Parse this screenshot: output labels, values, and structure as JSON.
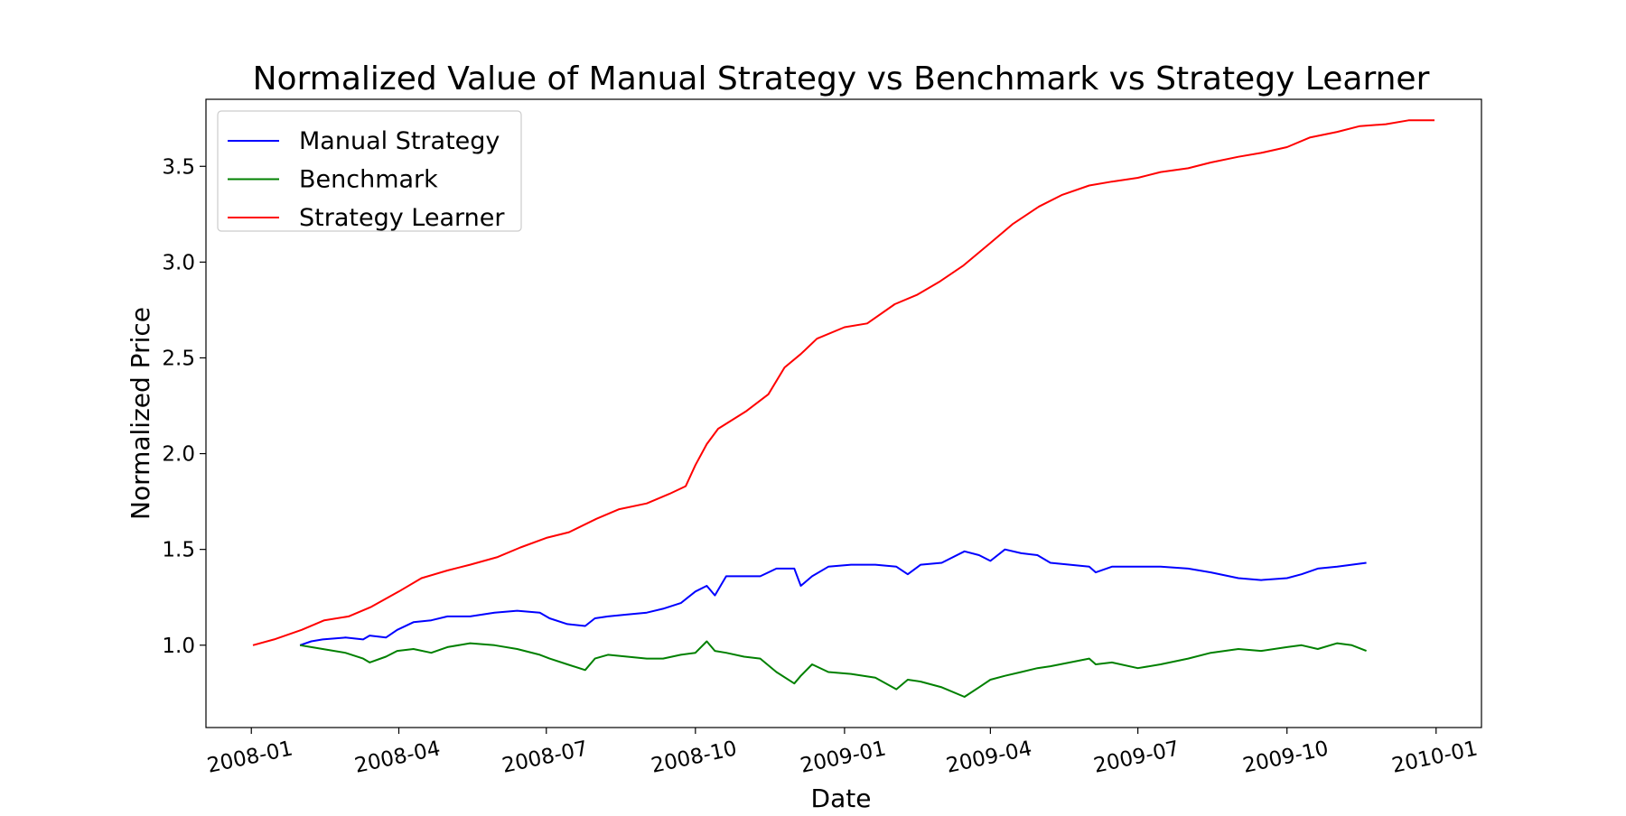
{
  "chart_data": {
    "type": "line",
    "title": "Normalized Value of Manual Strategy vs Benchmark vs Strategy Learner",
    "xlabel": "Date",
    "ylabel": "Normalized Price",
    "x_axis_type": "date",
    "xlim": [
      "2007-12-04",
      "2010-01-29"
    ],
    "ylim": [
      0.57,
      3.85
    ],
    "x_ticks": [
      "2008-01",
      "2008-04",
      "2008-07",
      "2008-10",
      "2009-01",
      "2009-04",
      "2009-07",
      "2009-10",
      "2010-01"
    ],
    "y_ticks": [
      "1.0",
      "1.5",
      "2.0",
      "2.5",
      "3.0",
      "3.5"
    ],
    "y_tick_values": [
      1.0,
      1.5,
      2.0,
      2.5,
      3.0,
      3.5
    ],
    "x_tick_rotation_deg": -12,
    "grid": false,
    "legend_position": "top-left",
    "series": [
      {
        "name": "Manual Strategy",
        "color": "#0000ff",
        "points": [
          [
            "2008-01-31",
            1.0
          ],
          [
            "2008-02-07",
            1.02
          ],
          [
            "2008-02-14",
            1.03
          ],
          [
            "2008-02-28",
            1.04
          ],
          [
            "2008-03-10",
            1.03
          ],
          [
            "2008-03-14",
            1.05
          ],
          [
            "2008-03-24",
            1.04
          ],
          [
            "2008-03-31",
            1.08
          ],
          [
            "2008-04-10",
            1.12
          ],
          [
            "2008-04-21",
            1.13
          ],
          [
            "2008-05-01",
            1.15
          ],
          [
            "2008-05-15",
            1.15
          ],
          [
            "2008-05-30",
            1.17
          ],
          [
            "2008-06-13",
            1.18
          ],
          [
            "2008-06-27",
            1.17
          ],
          [
            "2008-07-03",
            1.14
          ],
          [
            "2008-07-14",
            1.11
          ],
          [
            "2008-07-25",
            1.1
          ],
          [
            "2008-07-31",
            1.14
          ],
          [
            "2008-08-08",
            1.15
          ],
          [
            "2008-08-20",
            1.16
          ],
          [
            "2008-09-01",
            1.17
          ],
          [
            "2008-09-11",
            1.19
          ],
          [
            "2008-09-22",
            1.22
          ],
          [
            "2008-10-01",
            1.28
          ],
          [
            "2008-10-08",
            1.31
          ],
          [
            "2008-10-13",
            1.26
          ],
          [
            "2008-10-20",
            1.36
          ],
          [
            "2008-10-31",
            1.36
          ],
          [
            "2008-11-10",
            1.36
          ],
          [
            "2008-11-20",
            1.4
          ],
          [
            "2008-12-01",
            1.4
          ],
          [
            "2008-12-05",
            1.31
          ],
          [
            "2008-12-12",
            1.36
          ],
          [
            "2008-12-22",
            1.41
          ],
          [
            "2009-01-05",
            1.42
          ],
          [
            "2009-01-20",
            1.42
          ],
          [
            "2009-02-02",
            1.41
          ],
          [
            "2009-02-09",
            1.37
          ],
          [
            "2009-02-17",
            1.42
          ],
          [
            "2009-03-02",
            1.43
          ],
          [
            "2009-03-16",
            1.49
          ],
          [
            "2009-03-25",
            1.47
          ],
          [
            "2009-04-01",
            1.44
          ],
          [
            "2009-04-10",
            1.5
          ],
          [
            "2009-04-20",
            1.48
          ],
          [
            "2009-04-30",
            1.47
          ],
          [
            "2009-05-08",
            1.43
          ],
          [
            "2009-05-20",
            1.42
          ],
          [
            "2009-06-01",
            1.41
          ],
          [
            "2009-06-05",
            1.38
          ],
          [
            "2009-06-15",
            1.41
          ],
          [
            "2009-07-01",
            1.41
          ],
          [
            "2009-07-15",
            1.41
          ],
          [
            "2009-08-01",
            1.4
          ],
          [
            "2009-08-15",
            1.38
          ],
          [
            "2009-09-01",
            1.35
          ],
          [
            "2009-09-15",
            1.34
          ],
          [
            "2009-10-01",
            1.35
          ],
          [
            "2009-10-10",
            1.37
          ],
          [
            "2009-10-20",
            1.4
          ],
          [
            "2009-11-01",
            1.41
          ],
          [
            "2009-11-10",
            1.42
          ],
          [
            "2009-11-19",
            1.43
          ]
        ]
      },
      {
        "name": "Benchmark",
        "color": "#008000",
        "points": [
          [
            "2008-01-31",
            1.0
          ],
          [
            "2008-02-07",
            0.99
          ],
          [
            "2008-02-14",
            0.98
          ],
          [
            "2008-02-28",
            0.96
          ],
          [
            "2008-03-10",
            0.93
          ],
          [
            "2008-03-14",
            0.91
          ],
          [
            "2008-03-24",
            0.94
          ],
          [
            "2008-03-31",
            0.97
          ],
          [
            "2008-04-10",
            0.98
          ],
          [
            "2008-04-21",
            0.96
          ],
          [
            "2008-05-01",
            0.99
          ],
          [
            "2008-05-15",
            1.01
          ],
          [
            "2008-05-30",
            1.0
          ],
          [
            "2008-06-13",
            0.98
          ],
          [
            "2008-06-27",
            0.95
          ],
          [
            "2008-07-03",
            0.93
          ],
          [
            "2008-07-14",
            0.9
          ],
          [
            "2008-07-25",
            0.87
          ],
          [
            "2008-07-31",
            0.93
          ],
          [
            "2008-08-08",
            0.95
          ],
          [
            "2008-08-20",
            0.94
          ],
          [
            "2008-09-01",
            0.93
          ],
          [
            "2008-09-11",
            0.93
          ],
          [
            "2008-09-22",
            0.95
          ],
          [
            "2008-10-01",
            0.96
          ],
          [
            "2008-10-08",
            1.02
          ],
          [
            "2008-10-13",
            0.97
          ],
          [
            "2008-10-20",
            0.96
          ],
          [
            "2008-10-31",
            0.94
          ],
          [
            "2008-11-10",
            0.93
          ],
          [
            "2008-11-20",
            0.86
          ],
          [
            "2008-12-01",
            0.8
          ],
          [
            "2008-12-05",
            0.84
          ],
          [
            "2008-12-12",
            0.9
          ],
          [
            "2008-12-22",
            0.86
          ],
          [
            "2009-01-05",
            0.85
          ],
          [
            "2009-01-20",
            0.83
          ],
          [
            "2009-02-02",
            0.77
          ],
          [
            "2009-02-09",
            0.82
          ],
          [
            "2009-02-17",
            0.81
          ],
          [
            "2009-03-02",
            0.78
          ],
          [
            "2009-03-16",
            0.73
          ],
          [
            "2009-03-25",
            0.78
          ],
          [
            "2009-04-01",
            0.82
          ],
          [
            "2009-04-10",
            0.84
          ],
          [
            "2009-04-20",
            0.86
          ],
          [
            "2009-04-30",
            0.88
          ],
          [
            "2009-05-08",
            0.89
          ],
          [
            "2009-05-20",
            0.91
          ],
          [
            "2009-06-01",
            0.93
          ],
          [
            "2009-06-05",
            0.9
          ],
          [
            "2009-06-15",
            0.91
          ],
          [
            "2009-07-01",
            0.88
          ],
          [
            "2009-07-15",
            0.9
          ],
          [
            "2009-08-01",
            0.93
          ],
          [
            "2009-08-15",
            0.96
          ],
          [
            "2009-09-01",
            0.98
          ],
          [
            "2009-09-15",
            0.97
          ],
          [
            "2009-10-01",
            0.99
          ],
          [
            "2009-10-10",
            1.0
          ],
          [
            "2009-10-20",
            0.98
          ],
          [
            "2009-11-01",
            1.01
          ],
          [
            "2009-11-10",
            1.0
          ],
          [
            "2009-11-19",
            0.97
          ]
        ]
      },
      {
        "name": "Strategy Learner",
        "color": "#ff0000",
        "points": [
          [
            "2008-01-02",
            1.0
          ],
          [
            "2008-01-15",
            1.03
          ],
          [
            "2008-02-01",
            1.08
          ],
          [
            "2008-02-15",
            1.13
          ],
          [
            "2008-03-01",
            1.15
          ],
          [
            "2008-03-15",
            1.2
          ],
          [
            "2008-04-01",
            1.28
          ],
          [
            "2008-04-15",
            1.35
          ],
          [
            "2008-05-01",
            1.39
          ],
          [
            "2008-05-15",
            1.42
          ],
          [
            "2008-06-01",
            1.46
          ],
          [
            "2008-06-15",
            1.51
          ],
          [
            "2008-07-01",
            1.56
          ],
          [
            "2008-07-15",
            1.59
          ],
          [
            "2008-08-01",
            1.66
          ],
          [
            "2008-08-15",
            1.71
          ],
          [
            "2008-09-01",
            1.74
          ],
          [
            "2008-09-15",
            1.79
          ],
          [
            "2008-09-25",
            1.83
          ],
          [
            "2008-10-01",
            1.94
          ],
          [
            "2008-10-08",
            2.05
          ],
          [
            "2008-10-15",
            2.13
          ],
          [
            "2008-11-01",
            2.22
          ],
          [
            "2008-11-15",
            2.31
          ],
          [
            "2008-11-25",
            2.45
          ],
          [
            "2008-12-05",
            2.52
          ],
          [
            "2008-12-15",
            2.6
          ],
          [
            "2009-01-01",
            2.66
          ],
          [
            "2009-01-15",
            2.68
          ],
          [
            "2009-02-01",
            2.78
          ],
          [
            "2009-02-15",
            2.83
          ],
          [
            "2009-03-01",
            2.9
          ],
          [
            "2009-03-15",
            2.98
          ],
          [
            "2009-04-01",
            3.1
          ],
          [
            "2009-04-15",
            3.2
          ],
          [
            "2009-05-01",
            3.29
          ],
          [
            "2009-05-15",
            3.35
          ],
          [
            "2009-06-01",
            3.4
          ],
          [
            "2009-06-15",
            3.42
          ],
          [
            "2009-07-01",
            3.44
          ],
          [
            "2009-07-15",
            3.47
          ],
          [
            "2009-08-01",
            3.49
          ],
          [
            "2009-08-15",
            3.52
          ],
          [
            "2009-09-01",
            3.55
          ],
          [
            "2009-09-15",
            3.57
          ],
          [
            "2009-10-01",
            3.6
          ],
          [
            "2009-10-15",
            3.65
          ],
          [
            "2009-11-01",
            3.68
          ],
          [
            "2009-11-15",
            3.71
          ],
          [
            "2009-12-01",
            3.72
          ],
          [
            "2009-12-15",
            3.74
          ],
          [
            "2009-12-31",
            3.74
          ]
        ]
      }
    ]
  }
}
